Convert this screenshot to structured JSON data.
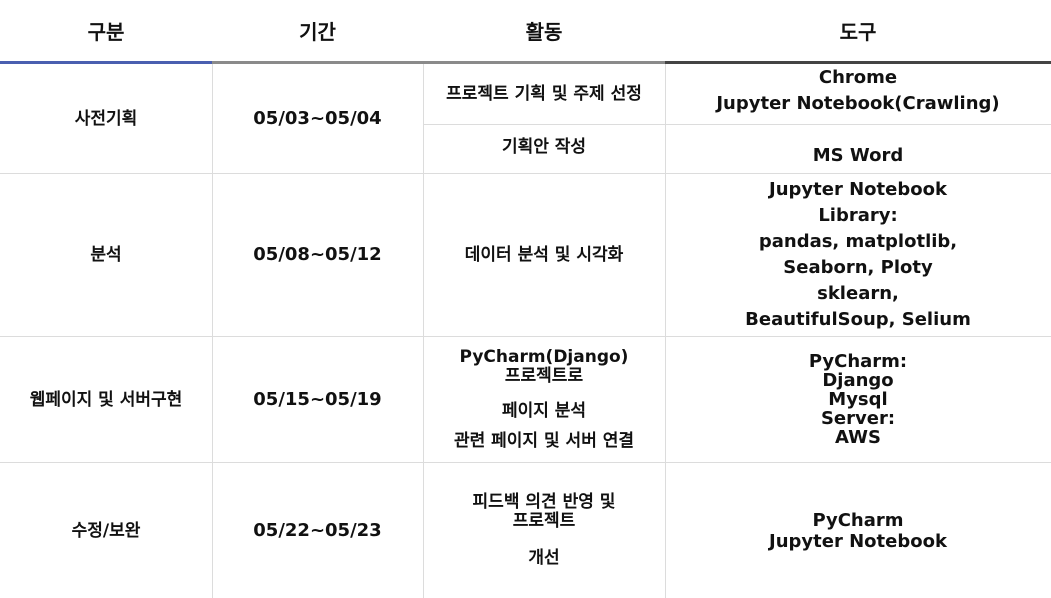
{
  "header": {
    "col1": "구분",
    "col2": "기간",
    "col3": "활동",
    "col4": "도구"
  },
  "rows": [
    {
      "category": "사전기획",
      "period": "05/03~05/04",
      "activities": [
        {
          "lines": [
            "프로젝트 기획 및 주제 선정"
          ]
        },
        {
          "lines": [
            "기획안 작성"
          ]
        }
      ],
      "tools": [
        {
          "lines": [
            "Chrome",
            "Jupyter Notebook(Crawling)"
          ]
        },
        {
          "lines": [
            "MS Word"
          ]
        }
      ]
    },
    {
      "category": "분석",
      "period": "05/08~05/12",
      "activities": [
        {
          "lines": [
            "데이터 분석 및 시각화"
          ]
        }
      ],
      "tools": [
        {
          "lines": [
            "Jupyter Notebook",
            "Library:",
            "pandas, matplotlib,",
            "Seaborn, Ploty",
            "sklearn,",
            "BeautifulSoup, Selium"
          ]
        }
      ]
    },
    {
      "category": "웹페이지 및 서버구현",
      "period": "05/15~05/19",
      "activities": [
        {
          "lines": [
            "PyCharm(Django)",
            "프로젝트로",
            "페이지 분석",
            "관련 페이지 및 서버 연결"
          ]
        }
      ],
      "tools": [
        {
          "lines": [
            "PyCharm:",
            "Django",
            "Mysql",
            "Server:",
            "AWS"
          ]
        }
      ]
    },
    {
      "category": "수정/보완",
      "period": "05/22~05/23",
      "activities": [
        {
          "lines": [
            "피드백 의견 반영 및",
            "프로젝트",
            "개선"
          ]
        }
      ],
      "tools": [
        {
          "lines": [
            "PyCharm",
            "Jupyter Notebook"
          ]
        }
      ]
    }
  ],
  "colors": {
    "accent_blue": "#4a5fb0",
    "accent_gray": "#8a8a8a",
    "accent_dark": "#444444",
    "grid": "#dcdcdc"
  }
}
